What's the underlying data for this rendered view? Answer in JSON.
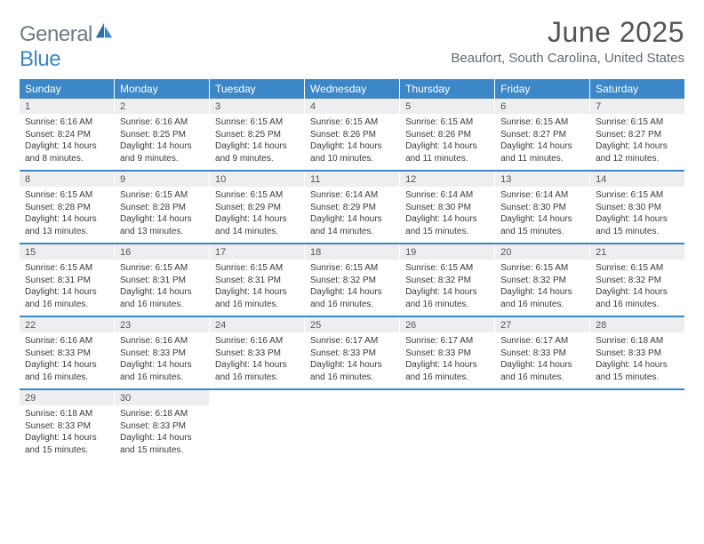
{
  "brand": {
    "general": "General",
    "blue": "Blue"
  },
  "title": "June 2025",
  "location": "Beaufort, South Carolina, United States",
  "colors": {
    "accent": "#3b87c8",
    "head_text": "#ffffff",
    "daynum_bg": "#eceeef",
    "text": "#3a3a3a",
    "muted": "#6b7a87"
  },
  "weekdays": [
    "Sunday",
    "Monday",
    "Tuesday",
    "Wednesday",
    "Thursday",
    "Friday",
    "Saturday"
  ],
  "weeks": [
    [
      {
        "n": "1",
        "sr": "Sunrise: 6:16 AM",
        "ss": "Sunset: 8:24 PM",
        "d1": "Daylight: 14 hours",
        "d2": "and 8 minutes."
      },
      {
        "n": "2",
        "sr": "Sunrise: 6:16 AM",
        "ss": "Sunset: 8:25 PM",
        "d1": "Daylight: 14 hours",
        "d2": "and 9 minutes."
      },
      {
        "n": "3",
        "sr": "Sunrise: 6:15 AM",
        "ss": "Sunset: 8:25 PM",
        "d1": "Daylight: 14 hours",
        "d2": "and 9 minutes."
      },
      {
        "n": "4",
        "sr": "Sunrise: 6:15 AM",
        "ss": "Sunset: 8:26 PM",
        "d1": "Daylight: 14 hours",
        "d2": "and 10 minutes."
      },
      {
        "n": "5",
        "sr": "Sunrise: 6:15 AM",
        "ss": "Sunset: 8:26 PM",
        "d1": "Daylight: 14 hours",
        "d2": "and 11 minutes."
      },
      {
        "n": "6",
        "sr": "Sunrise: 6:15 AM",
        "ss": "Sunset: 8:27 PM",
        "d1": "Daylight: 14 hours",
        "d2": "and 11 minutes."
      },
      {
        "n": "7",
        "sr": "Sunrise: 6:15 AM",
        "ss": "Sunset: 8:27 PM",
        "d1": "Daylight: 14 hours",
        "d2": "and 12 minutes."
      }
    ],
    [
      {
        "n": "8",
        "sr": "Sunrise: 6:15 AM",
        "ss": "Sunset: 8:28 PM",
        "d1": "Daylight: 14 hours",
        "d2": "and 13 minutes."
      },
      {
        "n": "9",
        "sr": "Sunrise: 6:15 AM",
        "ss": "Sunset: 8:28 PM",
        "d1": "Daylight: 14 hours",
        "d2": "and 13 minutes."
      },
      {
        "n": "10",
        "sr": "Sunrise: 6:15 AM",
        "ss": "Sunset: 8:29 PM",
        "d1": "Daylight: 14 hours",
        "d2": "and 14 minutes."
      },
      {
        "n": "11",
        "sr": "Sunrise: 6:14 AM",
        "ss": "Sunset: 8:29 PM",
        "d1": "Daylight: 14 hours",
        "d2": "and 14 minutes."
      },
      {
        "n": "12",
        "sr": "Sunrise: 6:14 AM",
        "ss": "Sunset: 8:30 PM",
        "d1": "Daylight: 14 hours",
        "d2": "and 15 minutes."
      },
      {
        "n": "13",
        "sr": "Sunrise: 6:14 AM",
        "ss": "Sunset: 8:30 PM",
        "d1": "Daylight: 14 hours",
        "d2": "and 15 minutes."
      },
      {
        "n": "14",
        "sr": "Sunrise: 6:15 AM",
        "ss": "Sunset: 8:30 PM",
        "d1": "Daylight: 14 hours",
        "d2": "and 15 minutes."
      }
    ],
    [
      {
        "n": "15",
        "sr": "Sunrise: 6:15 AM",
        "ss": "Sunset: 8:31 PM",
        "d1": "Daylight: 14 hours",
        "d2": "and 16 minutes."
      },
      {
        "n": "16",
        "sr": "Sunrise: 6:15 AM",
        "ss": "Sunset: 8:31 PM",
        "d1": "Daylight: 14 hours",
        "d2": "and 16 minutes."
      },
      {
        "n": "17",
        "sr": "Sunrise: 6:15 AM",
        "ss": "Sunset: 8:31 PM",
        "d1": "Daylight: 14 hours",
        "d2": "and 16 minutes."
      },
      {
        "n": "18",
        "sr": "Sunrise: 6:15 AM",
        "ss": "Sunset: 8:32 PM",
        "d1": "Daylight: 14 hours",
        "d2": "and 16 minutes."
      },
      {
        "n": "19",
        "sr": "Sunrise: 6:15 AM",
        "ss": "Sunset: 8:32 PM",
        "d1": "Daylight: 14 hours",
        "d2": "and 16 minutes."
      },
      {
        "n": "20",
        "sr": "Sunrise: 6:15 AM",
        "ss": "Sunset: 8:32 PM",
        "d1": "Daylight: 14 hours",
        "d2": "and 16 minutes."
      },
      {
        "n": "21",
        "sr": "Sunrise: 6:15 AM",
        "ss": "Sunset: 8:32 PM",
        "d1": "Daylight: 14 hours",
        "d2": "and 16 minutes."
      }
    ],
    [
      {
        "n": "22",
        "sr": "Sunrise: 6:16 AM",
        "ss": "Sunset: 8:33 PM",
        "d1": "Daylight: 14 hours",
        "d2": "and 16 minutes."
      },
      {
        "n": "23",
        "sr": "Sunrise: 6:16 AM",
        "ss": "Sunset: 8:33 PM",
        "d1": "Daylight: 14 hours",
        "d2": "and 16 minutes."
      },
      {
        "n": "24",
        "sr": "Sunrise: 6:16 AM",
        "ss": "Sunset: 8:33 PM",
        "d1": "Daylight: 14 hours",
        "d2": "and 16 minutes."
      },
      {
        "n": "25",
        "sr": "Sunrise: 6:17 AM",
        "ss": "Sunset: 8:33 PM",
        "d1": "Daylight: 14 hours",
        "d2": "and 16 minutes."
      },
      {
        "n": "26",
        "sr": "Sunrise: 6:17 AM",
        "ss": "Sunset: 8:33 PM",
        "d1": "Daylight: 14 hours",
        "d2": "and 16 minutes."
      },
      {
        "n": "27",
        "sr": "Sunrise: 6:17 AM",
        "ss": "Sunset: 8:33 PM",
        "d1": "Daylight: 14 hours",
        "d2": "and 16 minutes."
      },
      {
        "n": "28",
        "sr": "Sunrise: 6:18 AM",
        "ss": "Sunset: 8:33 PM",
        "d1": "Daylight: 14 hours",
        "d2": "and 15 minutes."
      }
    ],
    [
      {
        "n": "29",
        "sr": "Sunrise: 6:18 AM",
        "ss": "Sunset: 8:33 PM",
        "d1": "Daylight: 14 hours",
        "d2": "and 15 minutes."
      },
      {
        "n": "30",
        "sr": "Sunrise: 6:18 AM",
        "ss": "Sunset: 8:33 PM",
        "d1": "Daylight: 14 hours",
        "d2": "and 15 minutes."
      },
      null,
      null,
      null,
      null,
      null
    ]
  ]
}
